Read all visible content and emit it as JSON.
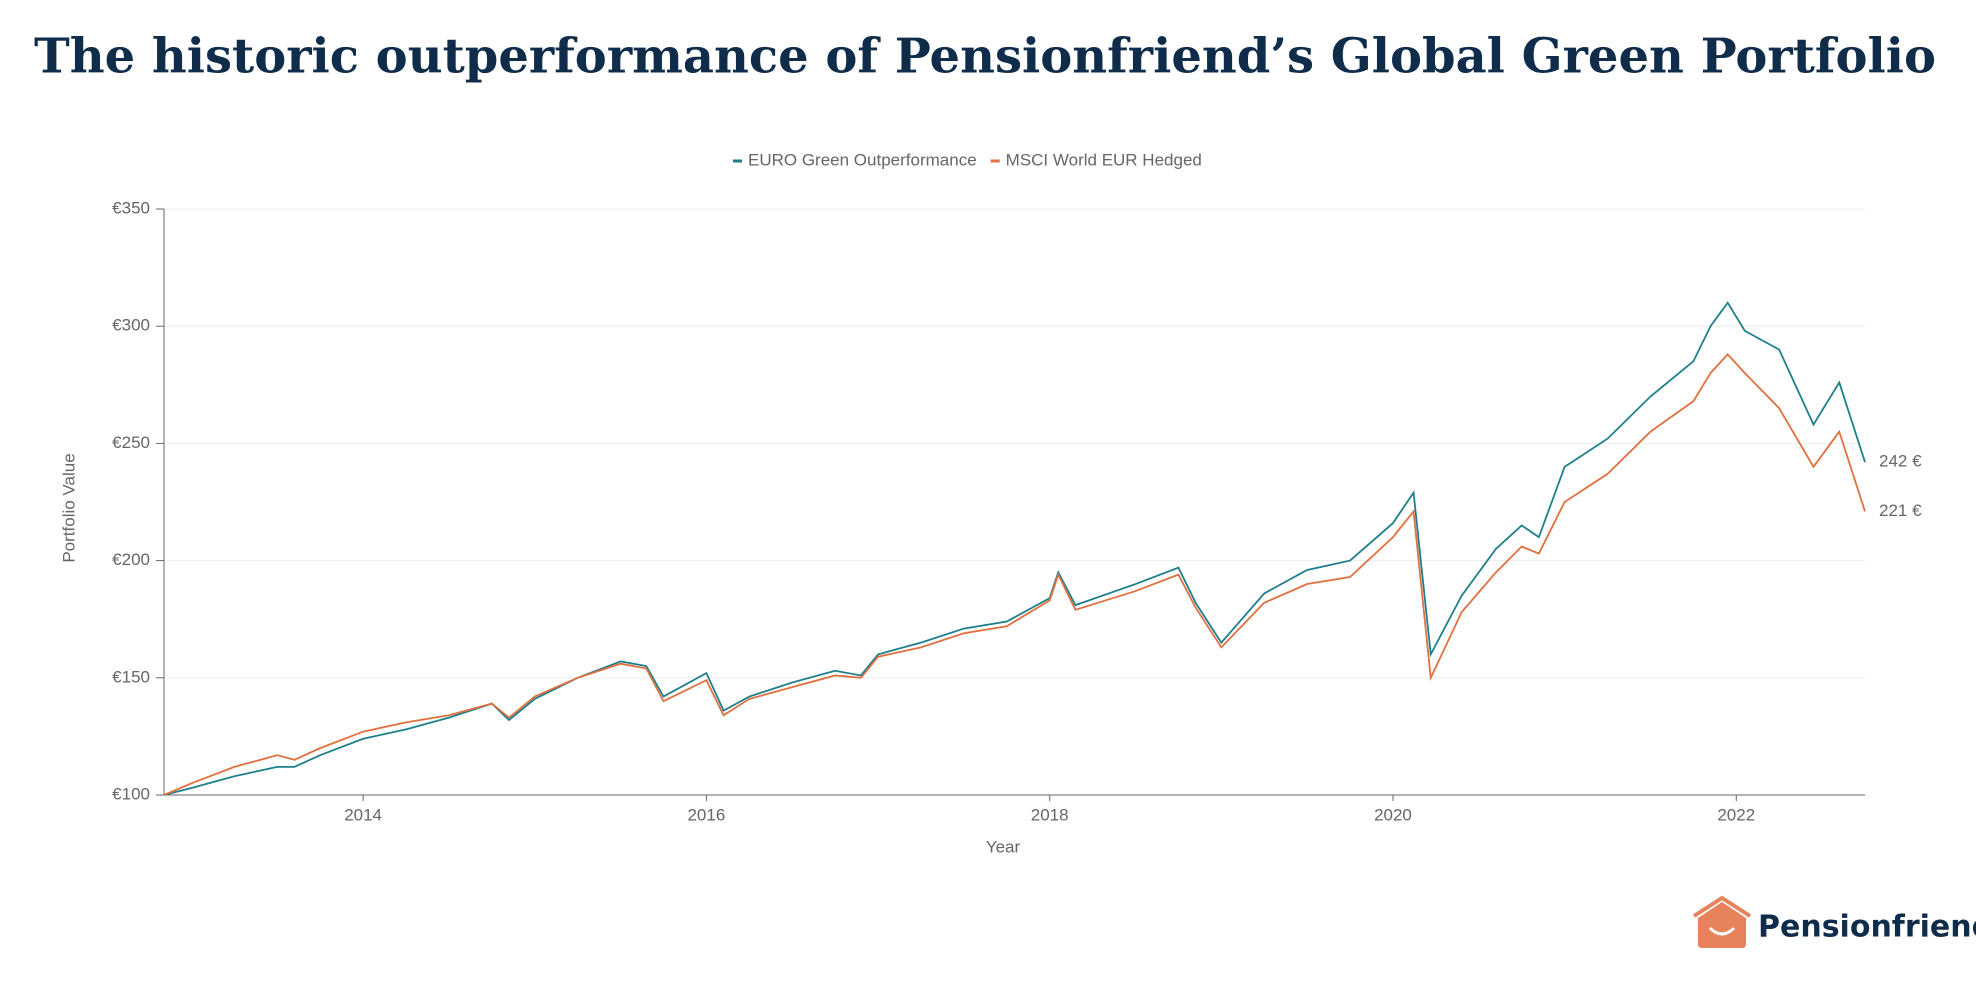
{
  "title": "The historic outperformance of Pensionfriend’s Global Green Portfolio",
  "logo": "Pensionfriend",
  "chart_data": {
    "type": "line",
    "xlabel": "Year",
    "ylabel": "Portfolio Value",
    "x": [
      2012.84,
      2013.0,
      2013.25,
      2013.5,
      2013.6,
      2013.75,
      2014.0,
      2014.25,
      2014.5,
      2014.75,
      2014.85,
      2015.0,
      2015.25,
      2015.5,
      2015.65,
      2015.75,
      2016.0,
      2016.1,
      2016.25,
      2016.5,
      2016.75,
      2016.9,
      2017.0,
      2017.25,
      2017.5,
      2017.75,
      2018.0,
      2018.05,
      2018.15,
      2018.5,
      2018.75,
      2018.85,
      2019.0,
      2019.25,
      2019.5,
      2019.75,
      2020.0,
      2020.12,
      2020.22,
      2020.4,
      2020.6,
      2020.75,
      2020.85,
      2021.0,
      2021.25,
      2021.5,
      2021.75,
      2021.85,
      2021.95,
      2022.05,
      2022.25,
      2022.45,
      2022.6,
      2022.75
    ],
    "series": [
      {
        "name": "EURO Green Outperformance",
        "color": "#1e7f8c",
        "end_label": "242 €",
        "values": [
          100,
          103,
          108,
          112,
          112,
          117,
          124,
          128,
          133,
          139,
          132,
          141,
          150,
          157,
          155,
          142,
          152,
          136,
          142,
          148,
          153,
          151,
          160,
          165,
          171,
          174,
          184,
          195,
          181,
          190,
          197,
          182,
          165,
          186,
          196,
          200,
          216,
          229,
          160,
          185,
          205,
          215,
          210,
          240,
          252,
          270,
          285,
          300,
          310,
          298,
          290,
          258,
          276,
          242
        ]
      },
      {
        "name": "MSCI World EUR Hedged",
        "color": "#e0703f",
        "end_label": "221 €",
        "values": [
          100,
          105,
          112,
          117,
          115,
          120,
          127,
          131,
          134,
          139,
          133,
          142,
          150,
          156,
          154,
          140,
          149,
          134,
          141,
          146,
          151,
          150,
          159,
          163,
          169,
          172,
          183,
          194,
          179,
          187,
          194,
          180,
          163,
          182,
          190,
          193,
          210,
          221,
          150,
          178,
          195,
          206,
          203,
          225,
          237,
          255,
          268,
          280,
          288,
          280,
          265,
          240,
          255,
          221
        ]
      }
    ],
    "xlim": [
      2012.84,
      2022.75
    ],
    "xticks": [
      2014,
      2016,
      2018,
      2020,
      2022
    ],
    "ylim": [
      100,
      350
    ],
    "yticks": [
      {
        "value": 100,
        "label": "€100"
      },
      {
        "value": 150,
        "label": "€150"
      },
      {
        "value": 200,
        "label": "€200"
      },
      {
        "value": 250,
        "label": "€250"
      },
      {
        "value": 300,
        "label": "€300"
      },
      {
        "value": 350,
        "label": "€350"
      }
    ],
    "grid": true,
    "legend": "top"
  }
}
